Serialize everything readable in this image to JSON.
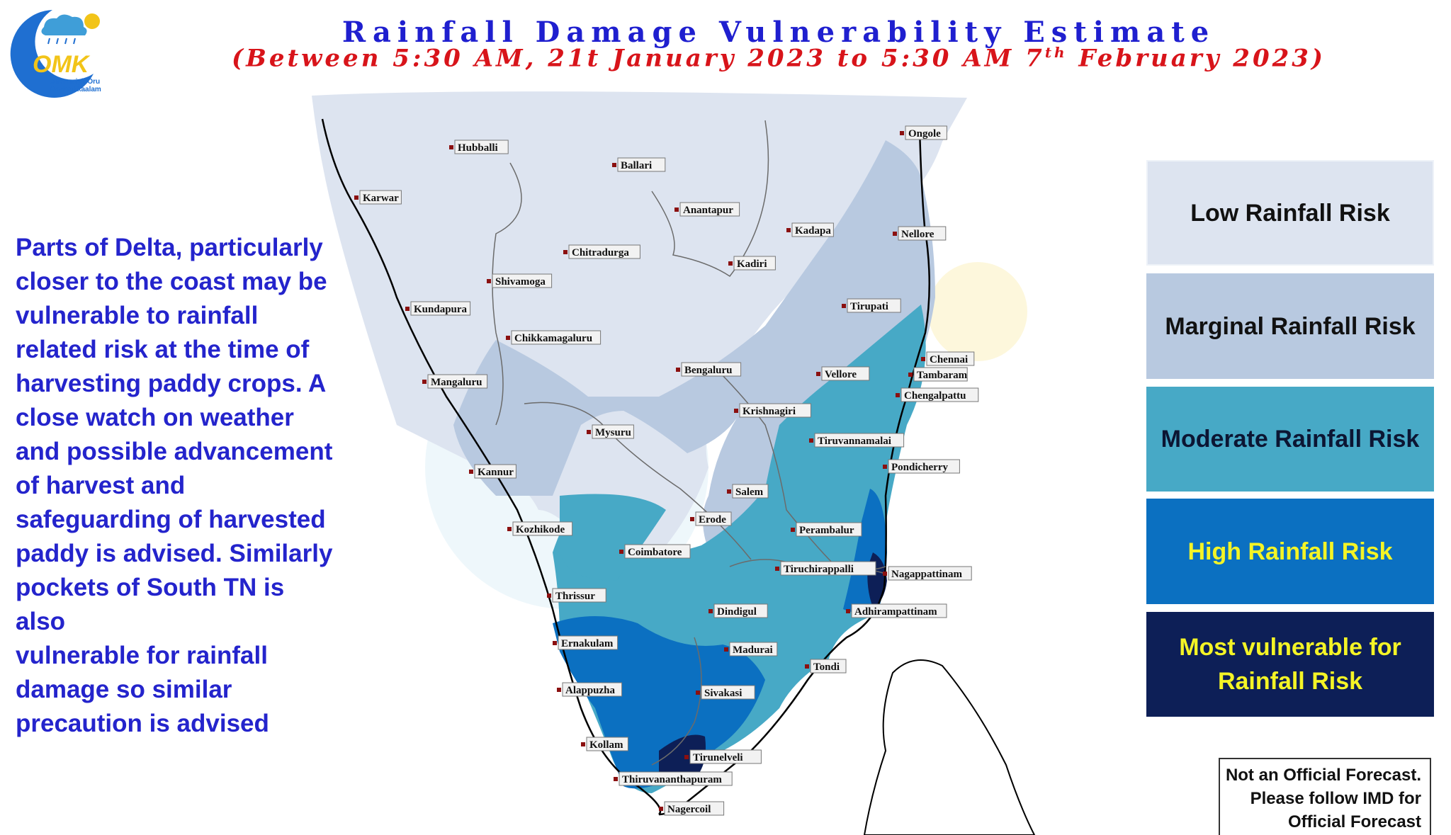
{
  "title": "Rainfall Damage Vulnerability Estimate",
  "subtitle": {
    "prefix": "(Between 5:30 AM, 21t January 2023 to 5:30 AM 7",
    "sup": "th",
    "suffix": " February 2023)"
  },
  "logo": {
    "abbr": "OMK",
    "line1": "Chennaiyil Oru",
    "line2": "Mazhaikkaalam"
  },
  "advisory_lines": [
    "Parts of Delta, particularly",
    "closer to the coast may be",
    "vulnerable to rainfall",
    "related risk at the time of",
    "harvesting paddy crops.  A",
    "close watch on weather",
    "and possible advancement",
    "of harvest and",
    "safeguarding of harvested",
    "paddy is advised. Similarly",
    "pockets of South TN is also",
    "vulnerable for rainfall",
    "damage so similar",
    "precaution is advised"
  ],
  "legend": {
    "low": "Low Rainfall Risk",
    "marginal": "Marginal Rainfall Risk",
    "moderate": "Moderate Rainfall Risk",
    "high": "High Rainfall Risk",
    "most_line1": "Most vulnerable for",
    "most_line2": "Rainfall Risk"
  },
  "colors": {
    "low": "#dde4f0",
    "marginal": "#b8c9e0",
    "moderate": "#47a9c6",
    "high": "#0b70c1",
    "most": "#0d1f57",
    "title": "#1f1fcf",
    "subtitle": "#d8141a",
    "advisory": "#2424cc",
    "legend_highlight_text": "#f4f426"
  },
  "cities": {
    "hubballi": "Hubballi",
    "ballari": "Ballari",
    "ongole": "Ongole",
    "karwar": "Karwar",
    "anantapur": "Anantapur",
    "kadapa": "Kadapa",
    "nellore": "Nellore",
    "chitradurga": "Chitradurga",
    "kadiri": "Kadiri",
    "shivamoga": "Shivamoga",
    "kundapura": "Kundapura",
    "tirupati": "Tirupati",
    "chikkamagaluru": "Chikkamagaluru",
    "chennai": "Chennai",
    "bengaluru": "Bengaluru",
    "vellore": "Vellore",
    "tambaram": "Tambaram",
    "mangaluru": "Mangaluru",
    "chengalpattu": "Chengalpattu",
    "krishnagiri": "Krishnagiri",
    "mysuru": "Mysuru",
    "tiruvannamalai": "Tiruvannamalai",
    "kannur": "Kannur",
    "pondicherry": "Pondicherry",
    "salem": "Salem",
    "kozhikode": "Kozhikode",
    "erode": "Erode",
    "perambalur": "Perambalur",
    "coimbatore": "Coimbatore",
    "tiruchirappalli": "Tiruchirappalli",
    "nagappattinam": "Nagappattinam",
    "thrissur": "Thrissur",
    "dindigul": "Dindigul",
    "adhirampattinam": "Adhirampattinam",
    "ernakulam": "Ernakulam",
    "madurai": "Madurai",
    "tondi": "Tondi",
    "alappuzha": "Alappuzha",
    "sivakasi": "Sivakasi",
    "kollam": "Kollam",
    "tirunelveli": "Tirunelveli",
    "thiruvananthapuram": "Thiruvananthapuram",
    "nagercoil": "Nagercoil"
  },
  "disclaimer_lines": [
    "Not an Official Forecast.",
    "Please follow IMD for",
    "Official Forecast"
  ]
}
